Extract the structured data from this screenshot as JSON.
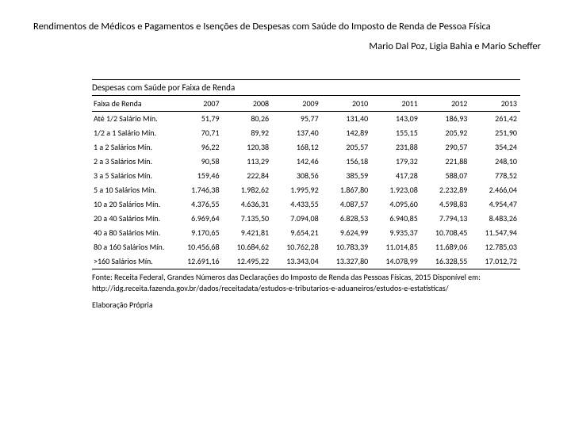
{
  "header": {
    "title": "Rendimentos de Médicos e Pagamentos e Isenções de Despesas com Saúde do Imposto de Renda de Pessoa Física",
    "authors": "Mario Dal Poz,  Ligia Bahia  e Mario Scheffer"
  },
  "table": {
    "title": "Despesas com Saúde por Faixa de Renda",
    "columns": [
      "Faixa de Renda",
      "2007",
      "2008",
      "2009",
      "2010",
      "2011",
      "2012",
      "2013"
    ],
    "rows": [
      [
        "Até 1/2 Salário Mín.",
        "51,79",
        "80,26",
        "95,77",
        "131,40",
        "143,09",
        "186,93",
        "261,42"
      ],
      [
        "1/2 a 1 Salário Mín.",
        "70,71",
        "89,92",
        "137,40",
        "142,89",
        "155,15",
        "205,92",
        "251,90"
      ],
      [
        "1 a 2 Salários Mín.",
        "96,22",
        "120,38",
        "168,12",
        "205,57",
        "231,88",
        "290,57",
        "354,24"
      ],
      [
        "2 a 3 Salários Mín.",
        "90,58",
        "113,29",
        "142,46",
        "156,18",
        "179,32",
        "221,88",
        "248,10"
      ],
      [
        "3 a 5 Salários Mín.",
        "159,46",
        "222,84",
        "308,56",
        "385,59",
        "417,28",
        "588,07",
        "778,52"
      ],
      [
        "5 a 10 Salários Mín.",
        "1.746,38",
        "1.982,62",
        "1.995,92",
        "1.867,80",
        "1.923,08",
        "2.232,89",
        "2.466,04"
      ],
      [
        "10 a 20 Salários Mín.",
        "4.376,55",
        "4.636,31",
        "4.433,55",
        "4.087,57",
        "4.095,60",
        "4.598,83",
        "4.954,47"
      ],
      [
        "20 a 40 Salários Mín.",
        "6.969,64",
        "7.135,50",
        "7.094,08",
        "6.828,53",
        "6.940,85",
        "7.794,13",
        "8.483,26"
      ],
      [
        "40 a 80 Salários Mín.",
        "9.170,65",
        "9.421,81",
        "9.654,21",
        "9.624,99",
        "9.935,37",
        "10.708,45",
        "11.547,94"
      ],
      [
        "80 a 160 Salários Mín.",
        "10.456,68",
        "10.684,62",
        "10.762,28",
        "10.783,39",
        "11.014,85",
        "11.689,06",
        "12.785,03"
      ],
      [
        ">160 Salários Mín.",
        "12.691,16",
        "12.495,22",
        "13.343,04",
        "13.327,80",
        "14.078,99",
        "16.328,55",
        "17.012,72"
      ]
    ]
  },
  "footer": {
    "source": "Fonte: Receita Federal, Grandes Números das Declarações do Imposto de Renda das Pessoas Físicas, 2015 Disponível em: http://idg.receita.fazenda.gov.br/dados/receitadata/estudos-e-tributarios-e-aduaneiros/estudos-e-estatisticas/",
    "elab": "Elaboração Própria"
  }
}
